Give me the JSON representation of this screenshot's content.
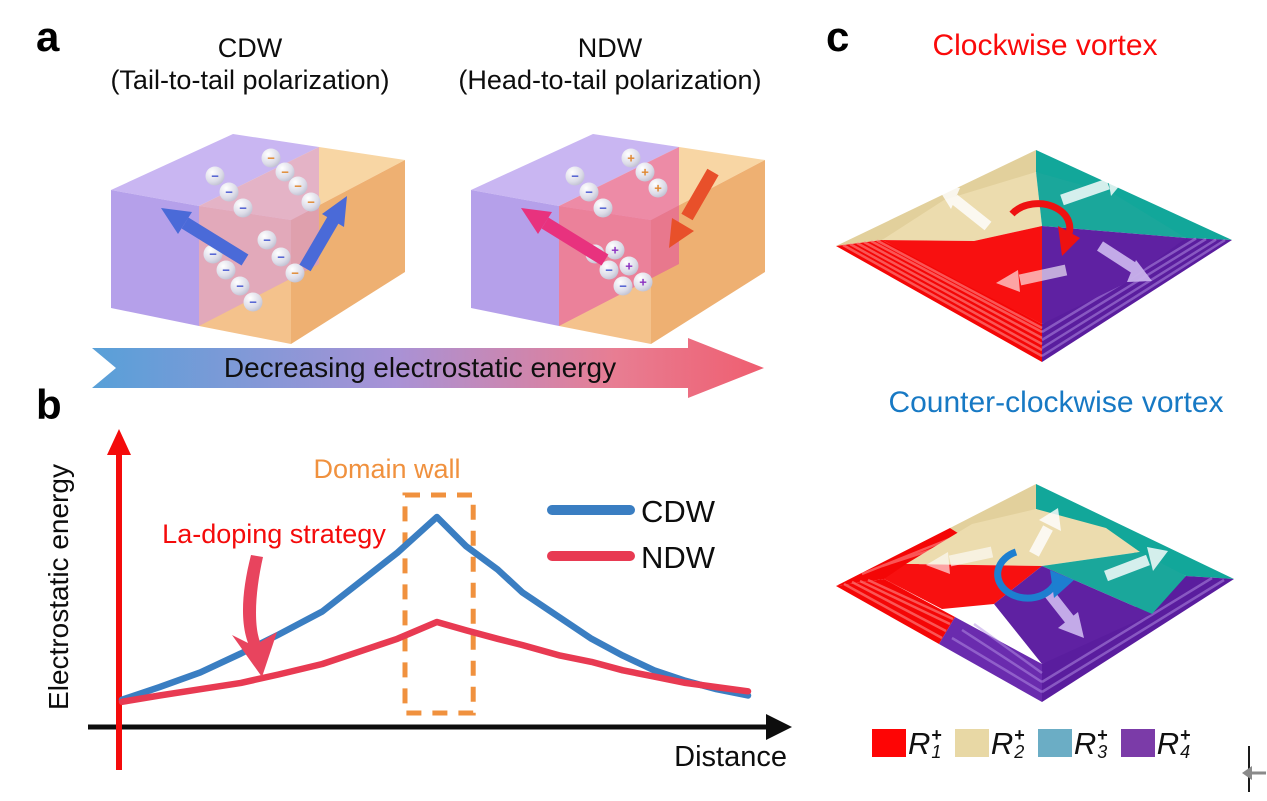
{
  "glyphs": {
    "minus": "−",
    "plus": "+"
  },
  "panel_a": {
    "label": "a",
    "cdw_title": "CDW",
    "cdw_subtitle": "(Tail-to-tail polarization)",
    "ndw_title": "NDW",
    "ndw_subtitle": "(Head-to-tail polarization)",
    "arrow_text": "Decreasing electrostatic energy",
    "arrow_gradient": [
      "#58a0d8",
      "#a892d6",
      "#ee6078"
    ],
    "domain_colors": {
      "left_purple": "#c9b6f2",
      "right_orange": "#f8d6a4"
    }
  },
  "panel_b": {
    "label": "b",
    "domain_wall_label": "Domain wall",
    "la_doping_label": "La-doping strategy",
    "axis_color": "#f40b0b",
    "box_color": "#f0913e"
  },
  "chart_data": {
    "type": "line",
    "title": "",
    "xlabel": "Distance",
    "ylabel": "Electrostatic energy",
    "x_range": [
      0,
      1
    ],
    "y_range": [
      0,
      1.1
    ],
    "grid": false,
    "legend_position": "upper right",
    "annotations": [
      "Domain wall",
      "La-doping strategy"
    ],
    "domain_wall_box": {
      "x": [
        0.452,
        0.561
      ],
      "y": [
        0.067,
        1.105
      ]
    },
    "series": [
      {
        "name": "CDW",
        "color": "#3a7ec2",
        "x": [
          0,
          0.06,
          0.125,
          0.19,
          0.25,
          0.32,
          0.38,
          0.44,
          0.503,
          0.55,
          0.6,
          0.64,
          0.7,
          0.75,
          0.8,
          0.85,
          0.9,
          0.95,
          1.0
        ],
        "y": [
          0.13,
          0.19,
          0.26,
          0.35,
          0.44,
          0.55,
          0.69,
          0.83,
          1.0,
          0.86,
          0.75,
          0.64,
          0.52,
          0.42,
          0.34,
          0.27,
          0.22,
          0.18,
          0.15
        ]
      },
      {
        "name": "NDW",
        "color": "#e83a52",
        "x": [
          0,
          0.06,
          0.125,
          0.19,
          0.25,
          0.32,
          0.38,
          0.44,
          0.503,
          0.55,
          0.6,
          0.64,
          0.7,
          0.75,
          0.8,
          0.85,
          0.9,
          0.95,
          1.0
        ],
        "y": [
          0.12,
          0.15,
          0.18,
          0.21,
          0.25,
          0.3,
          0.36,
          0.42,
          0.5,
          0.46,
          0.42,
          0.39,
          0.34,
          0.31,
          0.27,
          0.24,
          0.21,
          0.19,
          0.17
        ]
      }
    ]
  },
  "panel_c": {
    "label": "c",
    "top_title": "Clockwise vortex",
    "top_title_color": "#fa0a0a",
    "bottom_title": "Counter-clockwise vortex",
    "bottom_title_color": "#1779c4",
    "legend": [
      {
        "base": "R",
        "sub": "1",
        "sup": "+",
        "color": "#fe0505"
      },
      {
        "base": "R",
        "sub": "2",
        "sup": "+",
        "color": "#e8d8a5"
      },
      {
        "base": "R",
        "sub": "3",
        "sup": "+",
        "color": "#6badc5"
      },
      {
        "base": "R",
        "sub": "4",
        "sup": "+",
        "color": "#7b3ba8"
      }
    ],
    "domain_colors": {
      "r1_red": "#f40606",
      "r2_cream": "#ecdcae",
      "r3_teal": "#14a096",
      "r4_purple": "#5a1d9e"
    }
  }
}
